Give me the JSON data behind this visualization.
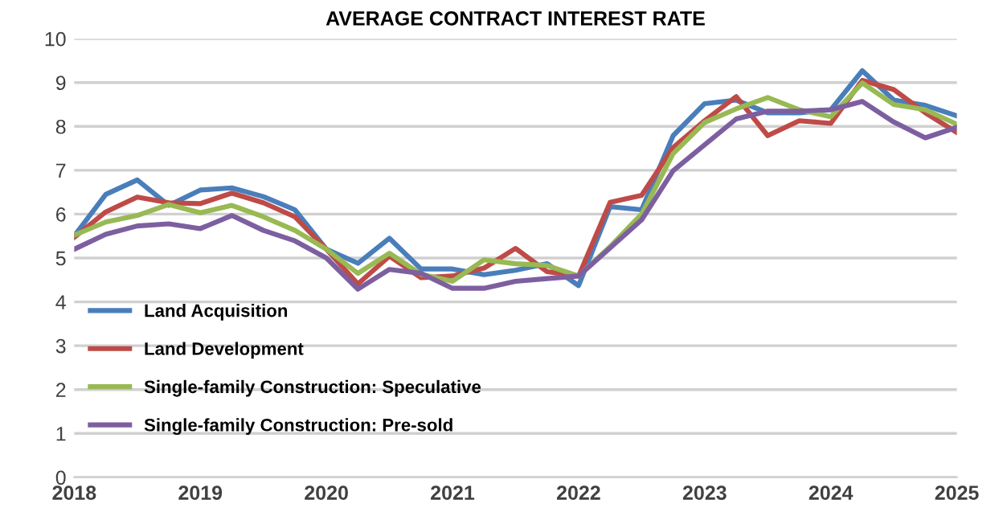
{
  "chart_data": {
    "type": "line",
    "title": "AVERAGE CONTRACT INTEREST RATE",
    "x": [
      2018,
      2018.25,
      2018.5,
      2018.75,
      2019,
      2019.25,
      2019.5,
      2019.75,
      2020,
      2020.25,
      2020.5,
      2020.75,
      2021,
      2021.25,
      2021.5,
      2021.75,
      2022,
      2022.25,
      2022.5,
      2022.75,
      2023,
      2023.25,
      2023.5,
      2023.75,
      2024,
      2024.25,
      2024.5,
      2024.75,
      2025
    ],
    "series": [
      {
        "name": "Land Acquisition",
        "color": "#4a7ebb",
        "values": [
          5.5,
          6.45,
          6.78,
          6.2,
          6.55,
          6.6,
          6.4,
          6.1,
          5.2,
          4.88,
          5.45,
          4.75,
          4.75,
          4.62,
          4.72,
          4.87,
          4.37,
          6.17,
          6.1,
          7.79,
          8.52,
          8.6,
          8.31,
          8.31,
          8.38,
          9.27,
          8.6,
          8.48,
          8.24
        ]
      },
      {
        "name": "Land Development",
        "color": "#be4b48",
        "values": [
          5.47,
          6.05,
          6.39,
          6.26,
          6.24,
          6.48,
          6.26,
          5.94,
          5.2,
          4.41,
          5.04,
          4.55,
          4.59,
          4.77,
          5.22,
          4.69,
          4.59,
          6.27,
          6.43,
          7.52,
          8.13,
          8.68,
          7.79,
          8.13,
          8.07,
          9.05,
          8.84,
          8.31,
          7.86
        ]
      },
      {
        "name": "Single-family Construction: Speculative",
        "color": "#98b954",
        "values": [
          5.52,
          5.82,
          5.97,
          6.22,
          6.03,
          6.2,
          5.94,
          5.63,
          5.2,
          4.65,
          5.11,
          4.63,
          4.47,
          4.96,
          4.87,
          4.83,
          4.59,
          5.26,
          6.0,
          7.38,
          8.09,
          8.4,
          8.66,
          8.38,
          8.22,
          8.99,
          8.5,
          8.38,
          8.05
        ]
      },
      {
        "name": "Single-family Construction: Pre-sold",
        "color": "#7d5fa0",
        "values": [
          5.2,
          5.54,
          5.73,
          5.78,
          5.67,
          5.97,
          5.63,
          5.39,
          5.0,
          4.29,
          4.74,
          4.65,
          4.31,
          4.31,
          4.47,
          4.53,
          4.59,
          5.23,
          5.87,
          6.99,
          7.58,
          8.17,
          8.35,
          8.35,
          8.38,
          8.57,
          8.1,
          7.74,
          7.98
        ]
      }
    ],
    "xlim": [
      2018,
      2025
    ],
    "xticks": [
      2018,
      2019,
      2020,
      2021,
      2022,
      2023,
      2024,
      2025
    ],
    "ylim": [
      0,
      10
    ],
    "yticks": [
      0,
      1,
      2,
      3,
      4,
      5,
      6,
      7,
      8,
      9,
      10
    ],
    "grid": "y",
    "legend": "bottom left",
    "marker": "none",
    "line_style": "solid"
  }
}
